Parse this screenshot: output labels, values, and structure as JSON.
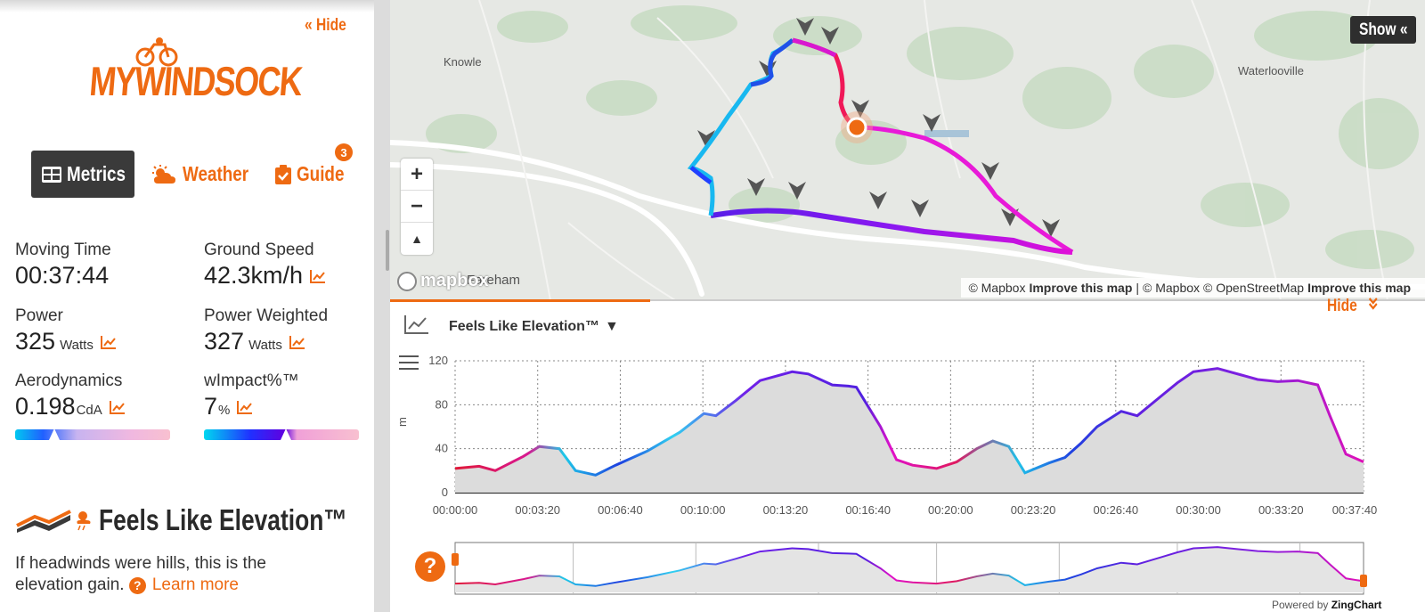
{
  "sidebar": {
    "hide_label": "« Hide",
    "logo_text": "MYWINDSOCK",
    "tabs": [
      {
        "label": "Metrics",
        "icon": "grid-icon",
        "active": true
      },
      {
        "label": "Weather",
        "icon": "sun-cloud-icon",
        "active": false
      },
      {
        "label": "Guide",
        "icon": "clipboard-check-icon",
        "active": false,
        "badge": "3"
      }
    ],
    "metrics": [
      {
        "label": "Moving Time",
        "value": "00:37:44",
        "unit": ""
      },
      {
        "label": "Ground Speed",
        "value": "42.3km/h",
        "unit": ""
      },
      {
        "label": "Power",
        "value": "325",
        "unit": "Watts"
      },
      {
        "label": "Power Weighted",
        "value": "327",
        "unit": "Watts"
      },
      {
        "label": "Aerodynamics",
        "value": "0.198",
        "unit": "CdA",
        "gauge_fraction": 0.25
      },
      {
        "label": "wImpact%™",
        "value": "7",
        "unit": "%",
        "gauge_fraction": 0.53
      }
    ],
    "feels_like": {
      "title": "Feels Like Elevation™",
      "description": "If headwinds were hills, this is the elevation gain.",
      "learn_more": "Learn more"
    }
  },
  "map": {
    "places": [
      "Knowle",
      "Waterlooville",
      "Fareham"
    ],
    "show_label": "Show «",
    "zoom_in": "+",
    "zoom_out": "−",
    "compass": "▲",
    "mapbox_logo": "mapbox",
    "attribution": {
      "mapbox1": "© Mapbox",
      "improve1": "Improve this map",
      "sep": "|",
      "mapbox2": "© Mapbox",
      "osm": "© OpenStreetMap",
      "improve2": "Improve this map"
    }
  },
  "chart_panel": {
    "title": "Feels Like Elevation™",
    "caret": "▼",
    "hide_label": "Hide",
    "help": "?",
    "powered_prefix": "Powered by",
    "powered_brand": "ZingChart"
  },
  "chart_data": {
    "type": "area",
    "title": "Feels Like Elevation™",
    "xlabel": "",
    "ylabel": "m",
    "ylim": [
      0,
      120
    ],
    "yticks": [
      0,
      40,
      80,
      120
    ],
    "xticks": [
      "00:00:00",
      "00:03:20",
      "00:06:40",
      "00:10:00",
      "00:13:20",
      "00:16:40",
      "00:20:00",
      "00:23:20",
      "00:26:40",
      "00:30:00",
      "00:33:20",
      "00:37:40"
    ],
    "xlim_seconds": [
      0,
      2264
    ],
    "series": [
      {
        "name": "Feels Like Elevation",
        "x_seconds": [
          0,
          60,
          100,
          170,
          210,
          260,
          300,
          350,
          400,
          480,
          560,
          620,
          650,
          700,
          760,
          840,
          880,
          940,
          980,
          1000,
          1060,
          1100,
          1140,
          1200,
          1250,
          1300,
          1340,
          1380,
          1420,
          1480,
          1520,
          1560,
          1600,
          1660,
          1700,
          1760,
          1800,
          1840,
          1900,
          1960,
          2000,
          2050,
          2100,
          2150,
          2180,
          2220,
          2264
        ],
        "values": [
          22,
          24,
          20,
          33,
          42,
          40,
          20,
          16,
          25,
          38,
          55,
          72,
          70,
          84,
          102,
          110,
          108,
          98,
          97,
          96,
          60,
          30,
          25,
          22,
          28,
          40,
          47,
          42,
          18,
          27,
          32,
          45,
          60,
          74,
          70,
          88,
          100,
          110,
          113,
          107,
          103,
          101,
          102,
          98,
          70,
          35,
          28
        ]
      }
    ]
  }
}
